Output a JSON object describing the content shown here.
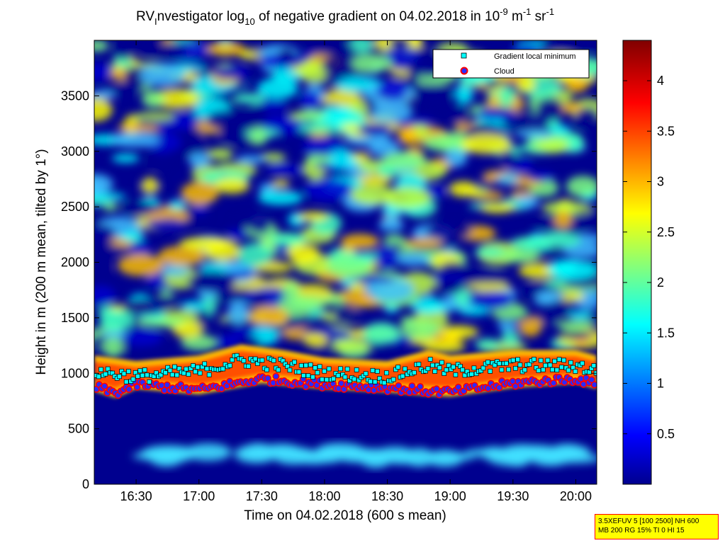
{
  "title": {
    "prefix": "RV",
    "sub": "I",
    "mid": "nvestigator log",
    "sub2": "10",
    "rest": " of negative gradient on 04.02.2018 in 10",
    "exp1": "-9",
    "unit1": " m",
    "exp2": "-1",
    "unit2": " sr",
    "exp3": "-1"
  },
  "xlabel": "Time on 04.02.2018 (600 s mean)",
  "ylabel": "Height in m (200 m mean, tilted by 1°)",
  "legend": {
    "items": [
      "Gradient local minimum",
      "Cloud"
    ]
  },
  "info_box": {
    "line1": "3.5XEFUV 5 [100 2500] NH 600",
    "line2": "MB 200 RG 15% TI 0 HI 15"
  },
  "colors": {
    "background_field": "#00008f",
    "gradient_minimum_marker": "#00ffff",
    "cloud_marker_fill": "#2b2bff",
    "cloud_marker_edge": "#ff0000"
  },
  "chart_data": {
    "type": "heatmap",
    "title": "RVInvestigator log10 of negative gradient on 04.02.2018 in 10^-9 m^-1 sr^-1",
    "xlabel": "Time on 04.02.2018 (600 s mean)",
    "ylabel": "Height in m (200 m mean, tilted by 1°)",
    "x_ticks": [
      "16:30",
      "17:00",
      "17:30",
      "18:00",
      "18:30",
      "19:00",
      "19:30",
      "20:00"
    ],
    "y_ticks": [
      0,
      500,
      1000,
      1500,
      2000,
      2500,
      3000,
      3500
    ],
    "xlim": [
      "16:10",
      "20:10"
    ],
    "ylim": [
      0,
      4000
    ],
    "colorbar": {
      "ticks": [
        0.5,
        1,
        1.5,
        2,
        2.5,
        3,
        3.5,
        4
      ],
      "range": [
        0,
        4.4
      ],
      "colormap": "jet"
    },
    "legend_position": "top-right",
    "series": [
      {
        "name": "Gradient local minimum",
        "marker": "square",
        "color": "#00ffff"
      },
      {
        "name": "Cloud",
        "marker": "circle",
        "color": "#2b2bff"
      }
    ],
    "features": {
      "aerosol_layer_top_m": {
        "times": [
          "16:10",
          "16:30",
          "17:00",
          "17:20",
          "17:40",
          "18:00",
          "18:30",
          "18:50",
          "19:00",
          "19:30",
          "20:00",
          "20:10"
        ],
        "values": [
          1100,
          1050,
          1100,
          1200,
          1150,
          1080,
          1050,
          1150,
          1100,
          1150,
          1150,
          1100
        ]
      },
      "cloud_base_m": {
        "times": [
          "16:10",
          "16:20",
          "16:30",
          "17:00",
          "17:30",
          "18:00",
          "18:30",
          "18:50",
          "19:00",
          "19:30",
          "20:00",
          "20:10"
        ],
        "values": [
          880,
          820,
          900,
          850,
          950,
          900,
          870,
          840,
          830,
          910,
          950,
          900
        ]
      }
    }
  }
}
